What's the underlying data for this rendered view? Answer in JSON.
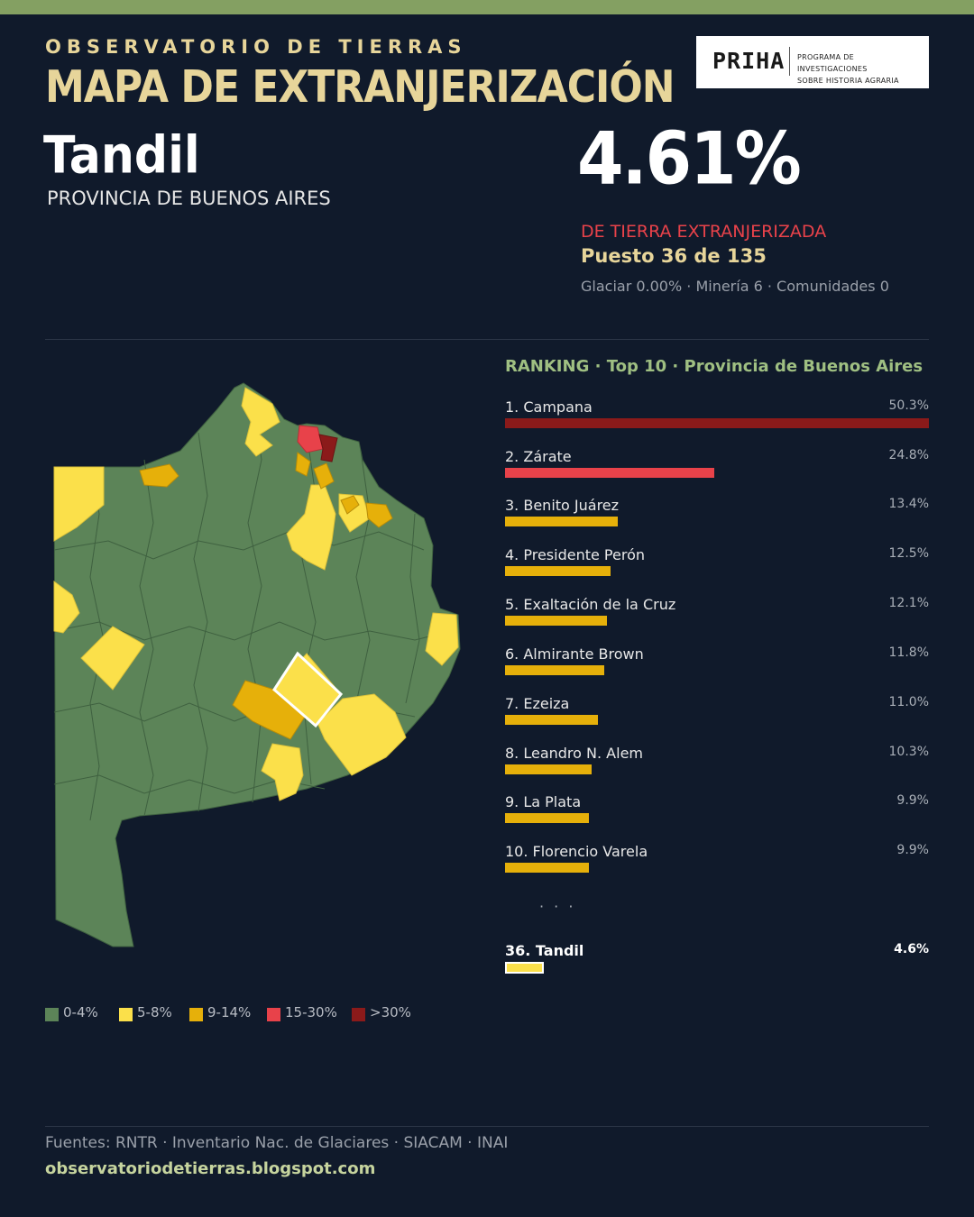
{
  "header": {
    "kicker": "OBSERVATORIO DE TIERRAS",
    "title": "MAPA DE EXTRANJERIZACIÓN",
    "logo_main": "PRIHA",
    "logo_sub_1": "PROGRAMA DE INVESTIGACIONES",
    "logo_sub_2": "SOBRE HISTORIA AGRARIA"
  },
  "place": {
    "name": "Tandil",
    "province": "PROVINCIA DE BUENOS AIRES",
    "percent": "4.61%",
    "percent_label": "DE TIERRA EXTRANJERIZADA",
    "rank": "Puesto 36 de 135",
    "meta": "Glaciar 0.00% · Minería 6 · Comunidades 0"
  },
  "ranking": {
    "title": "RANKING · Top 10 · Provincia de Buenos Aires",
    "max": 50.3,
    "items": [
      {
        "label": "1. Campana",
        "value_text": "50.3%",
        "value": 50.3,
        "color": "#8b1a1a"
      },
      {
        "label": "2. Zárate",
        "value_text": "24.8%",
        "value": 24.8,
        "color": "#e8424a"
      },
      {
        "label": "3. Benito Juárez",
        "value_text": "13.4%",
        "value": 13.4,
        "color": "#e6b00a"
      },
      {
        "label": "4. Presidente Perón",
        "value_text": "12.5%",
        "value": 12.5,
        "color": "#e6b00a"
      },
      {
        "label": "5. Exaltación de la Cruz",
        "value_text": "12.1%",
        "value": 12.1,
        "color": "#e6b00a"
      },
      {
        "label": "6. Almirante Brown",
        "value_text": "11.8%",
        "value": 11.8,
        "color": "#e6b00a"
      },
      {
        "label": "7. Ezeiza",
        "value_text": "11.0%",
        "value": 11.0,
        "color": "#e6b00a"
      },
      {
        "label": "8. Leandro N. Alem",
        "value_text": "10.3%",
        "value": 10.3,
        "color": "#e6b00a"
      },
      {
        "label": "9. La Plata",
        "value_text": "9.9%",
        "value": 9.9,
        "color": "#e6b00a"
      },
      {
        "label": "10. Florencio Varela",
        "value_text": "9.9%",
        "value": 9.9,
        "color": "#e6b00a"
      }
    ],
    "ellipsis": "· · ·",
    "selected": {
      "label": "36. Tandil",
      "value_text": "4.6%",
      "value": 4.6,
      "color": "#fbe04a"
    }
  },
  "legend": [
    {
      "label": "0-4%",
      "color": "#5c8458"
    },
    {
      "label": "5-8%",
      "color": "#fbe04a"
    },
    {
      "label": "9-14%",
      "color": "#e6b00a"
    },
    {
      "label": "15-30%",
      "color": "#e8424a"
    },
    {
      "label": ">30%",
      "color": "#8b1a1a"
    }
  ],
  "footer": {
    "sources": "Fuentes: RNTR · Inventario Nac. de Glaciares · SIACAM · INAI",
    "site": "observatoriodetierras.blogspot.com"
  },
  "colors": {
    "background": "#101a2b",
    "accent_bar": "#84a062",
    "base_land": "#5c8458",
    "highlight_border": "#ffffff"
  }
}
